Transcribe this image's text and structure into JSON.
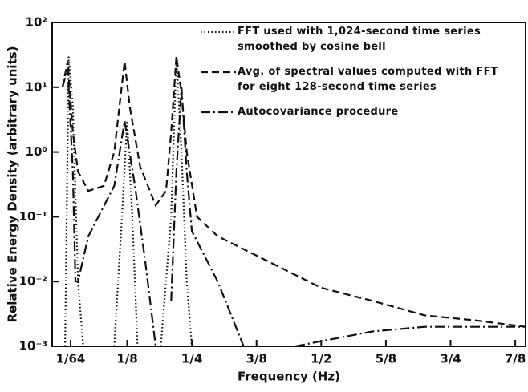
{
  "chart_data": {
    "type": "line",
    "x_label": "Frequency (Hz)",
    "y_label": "Relative Energy Density (arbitrary units)",
    "log_y": true,
    "xlim": [
      -0.02,
      0.895
    ],
    "ylim": [
      0.001,
      100
    ],
    "xticks": [
      {
        "value": 0.015625,
        "label": "1/64"
      },
      {
        "value": 0.125,
        "label": "1/8"
      },
      {
        "value": 0.25,
        "label": "1/4"
      },
      {
        "value": 0.375,
        "label": "3/8"
      },
      {
        "value": 0.5,
        "label": "1/2"
      },
      {
        "value": 0.625,
        "label": "5/8"
      },
      {
        "value": 0.75,
        "label": "3/4"
      },
      {
        "value": 0.875,
        "label": "7/8"
      }
    ],
    "yticks": [
      {
        "value": 0.001,
        "label": "10⁻³"
      },
      {
        "value": 0.01,
        "label": "10⁻²"
      },
      {
        "value": 0.1,
        "label": "10⁻¹"
      },
      {
        "value": 1,
        "label": "10⁰"
      },
      {
        "value": 10,
        "label": "10¹"
      },
      {
        "value": 100,
        "label": "10²"
      }
    ],
    "series": [
      {
        "name": "FFT used with 1,024-second time series smoothed by cosine bell",
        "color": "#111111",
        "dash": "dotted",
        "x": [
          0.005,
          0.012,
          0.02,
          0.03,
          0.04,
          0.07,
          0.1,
          0.115,
          0.125,
          0.135,
          0.145,
          0.17,
          0.19,
          0.21,
          0.22,
          0.23,
          0.24,
          0.25
        ],
        "values": [
          0.001,
          30,
          5,
          0.01,
          0.001,
          null,
          0.001,
          0.1,
          3,
          0.1,
          0.001,
          null,
          0.001,
          0.1,
          30,
          1,
          0.01,
          0.001
        ]
      },
      {
        "name": "Avg. of spectral values computed with FFT for eight 128-second time series",
        "color": "#111111",
        "dash": "dashed",
        "x": [
          0.0,
          0.01,
          0.02,
          0.03,
          0.05,
          0.08,
          0.1,
          0.11,
          0.12,
          0.13,
          0.15,
          0.18,
          0.2,
          0.21,
          0.22,
          0.23,
          0.24,
          0.26,
          0.3,
          0.4,
          0.5,
          0.6,
          0.7,
          0.8,
          0.895
        ],
        "values": [
          10,
          25,
          2,
          0.5,
          0.25,
          0.3,
          1,
          5,
          25,
          5,
          0.6,
          0.15,
          0.25,
          2,
          30,
          8,
          1,
          0.1,
          0.05,
          0.02,
          0.008,
          0.005,
          0.003,
          0.0025,
          0.002
        ]
      },
      {
        "name": "Autocovariance procedure",
        "color": "#111111",
        "dash": "dashdot",
        "x": [
          0.0,
          0.01,
          0.02,
          0.025,
          0.03,
          0.05,
          0.1,
          0.12,
          0.14,
          0.16,
          0.18,
          0.2,
          0.21,
          0.22,
          0.23,
          0.24,
          0.25,
          0.3,
          0.35,
          0.4,
          0.45,
          0.5,
          0.6,
          0.7,
          0.895
        ],
        "values": [
          10,
          20,
          0.5,
          0.01,
          0.01,
          0.05,
          0.3,
          3,
          0.3,
          0.02,
          0.001,
          null,
          0.005,
          0.5,
          10,
          0.5,
          0.06,
          0.01,
          0.001,
          null,
          0.001,
          0.0012,
          0.0017,
          0.002,
          0.002
        ]
      }
    ]
  }
}
